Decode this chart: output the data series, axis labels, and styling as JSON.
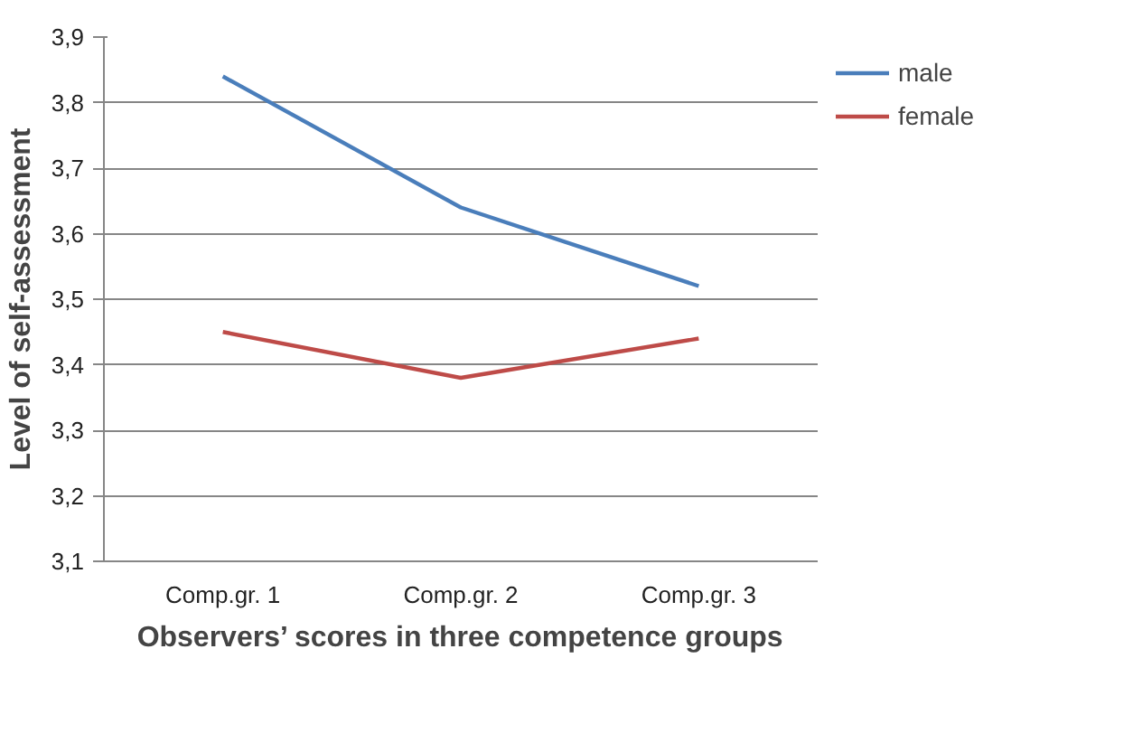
{
  "chart_data": {
    "type": "line",
    "xlabel": "Observers’ scores in three competence groups",
    "ylabel": "Level of self-assessment",
    "categories": [
      "Comp.gr. 1",
      "Comp.gr. 2",
      "Comp.gr. 3"
    ],
    "series": [
      {
        "name": "male",
        "color": "#4a7ebb",
        "values": [
          3.84,
          3.64,
          3.52
        ]
      },
      {
        "name": "female",
        "color": "#be4b48",
        "values": [
          3.45,
          3.38,
          3.44
        ]
      }
    ],
    "ylim": [
      3.1,
      3.9
    ],
    "yticks": [
      {
        "value": 3.1,
        "label": "3,1"
      },
      {
        "value": 3.2,
        "label": "3,2"
      },
      {
        "value": 3.3,
        "label": "3,3"
      },
      {
        "value": 3.4,
        "label": "3,4"
      },
      {
        "value": 3.5,
        "label": "3,5"
      },
      {
        "value": 3.6,
        "label": "3,6"
      },
      {
        "value": 3.7,
        "label": "3,7"
      },
      {
        "value": 3.8,
        "label": "3,8"
      },
      {
        "value": 3.9,
        "label": "3,9"
      }
    ],
    "grid": "y",
    "legend": "top right",
    "marker": "none",
    "line_style": "solid"
  }
}
